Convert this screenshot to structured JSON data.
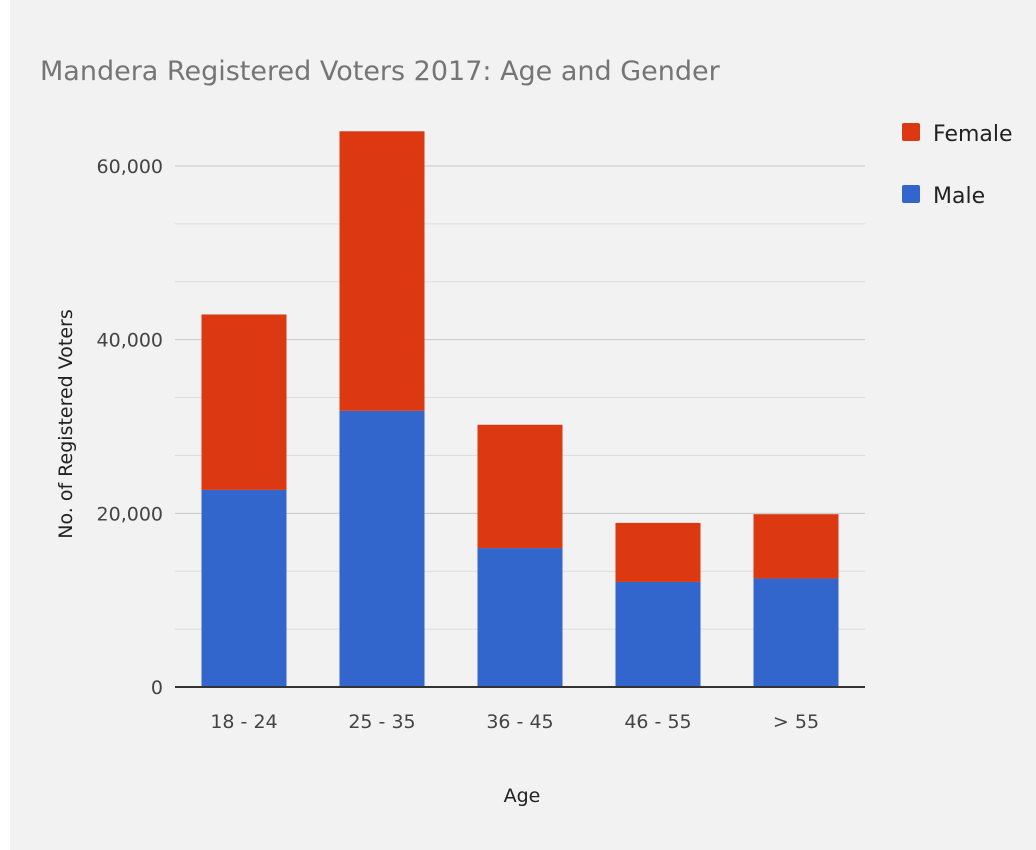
{
  "chart_data": {
    "type": "bar",
    "stacked": true,
    "title": "Mandera Registered Voters 2017: Age and Gender",
    "xlabel": "Age",
    "ylabel": "No. of Registered Voters",
    "categories": [
      "18 - 24",
      "25 - 35",
      "36 - 45",
      "46 - 55",
      "> 55"
    ],
    "series": [
      {
        "name": "Male",
        "color": "#3366cc",
        "values": [
          22700,
          31800,
          16000,
          12100,
          12500
        ]
      },
      {
        "name": "Female",
        "color": "#dc3912",
        "values": [
          20200,
          32200,
          14200,
          6800,
          7400
        ]
      }
    ],
    "ylim": [
      0,
      60000
    ],
    "yticks": [
      0,
      20000,
      40000,
      60000
    ],
    "ytick_labels": [
      "0",
      "20,000",
      "40,000",
      "60,000"
    ],
    "minor_gridlines": true,
    "grid": true,
    "legend_position": "top-right",
    "legend_order": [
      "Female",
      "Male"
    ]
  }
}
